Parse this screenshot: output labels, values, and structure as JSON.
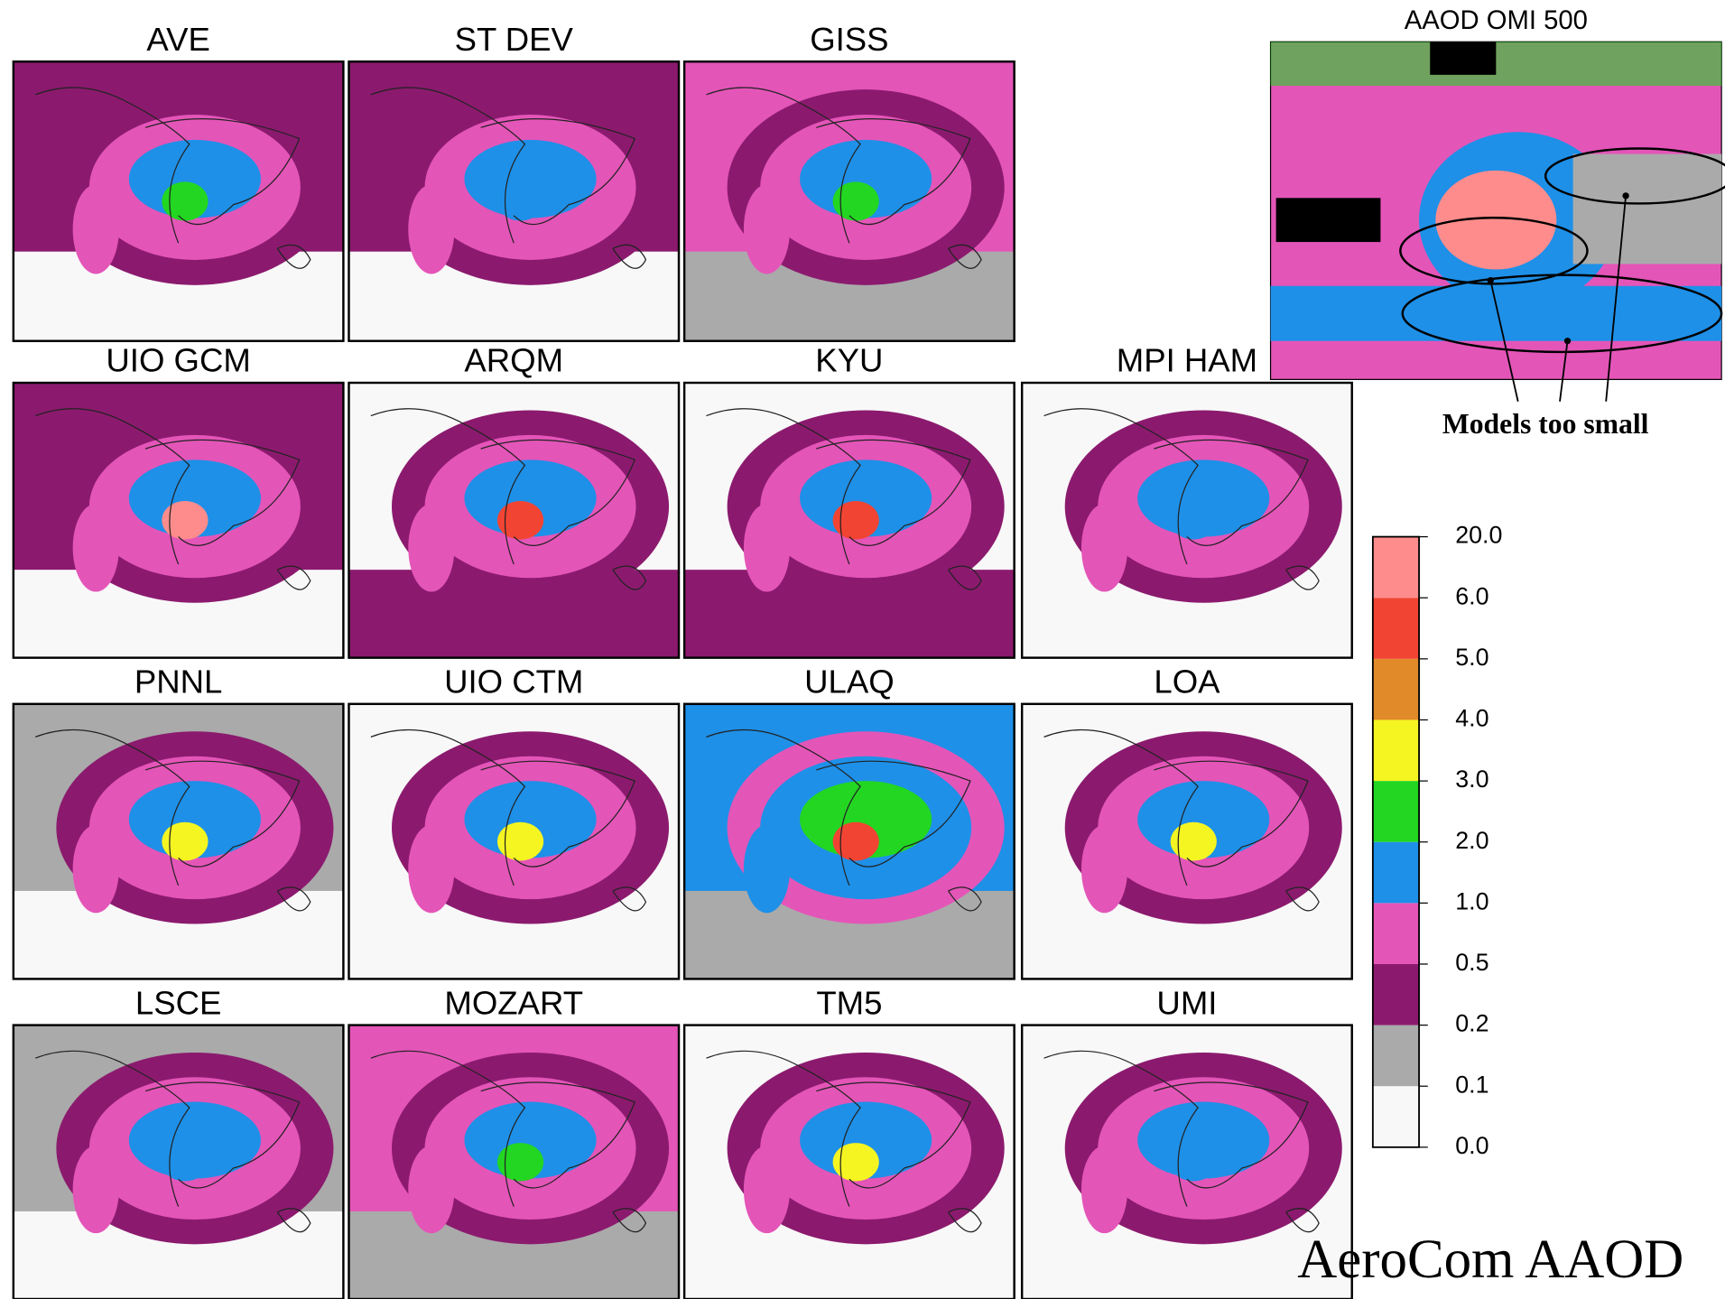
{
  "panels": [
    {
      "title": "AVE"
    },
    {
      "title": "ST DEV"
    },
    {
      "title": "GISS"
    },
    {
      "title": "UIO GCM"
    },
    {
      "title": "ARQM"
    },
    {
      "title": "KYU"
    },
    {
      "title": "MPI HAM"
    },
    {
      "title": "PNNL"
    },
    {
      "title": "UIO CTM"
    },
    {
      "title": "ULAQ"
    },
    {
      "title": "LOA"
    },
    {
      "title": "LSCE"
    },
    {
      "title": "MOZART"
    },
    {
      "title": "TM5"
    },
    {
      "title": "UMI"
    }
  ],
  "inset": {
    "title": "AAOD OMI 500",
    "annotation": "Models too small"
  },
  "colorbar": {
    "ticks": [
      {
        "value": 0,
        "label": "0.0"
      },
      {
        "value": 0.1,
        "label": "0.1"
      },
      {
        "value": 0.2,
        "label": "0.2"
      },
      {
        "value": 0.5,
        "label": "0.5"
      },
      {
        "value": 1,
        "label": "1.0"
      },
      {
        "value": 2,
        "label": "2.0"
      },
      {
        "value": 3,
        "label": "3.0"
      },
      {
        "value": 4,
        "label": "4.0"
      },
      {
        "value": 5,
        "label": "5.0"
      },
      {
        "value": 6,
        "label": "6.0"
      },
      {
        "value": 20,
        "label": "20.0"
      }
    ],
    "colors": [
      "#f8f8f8",
      "#aaaaaa",
      "#8b1a6e",
      "#e455b8",
      "#1e90e8",
      "#22d622",
      "#f5f522",
      "#e08a2a",
      "#f24433",
      "#ff8c8c"
    ]
  },
  "footer": "AeroCom AAOD"
}
